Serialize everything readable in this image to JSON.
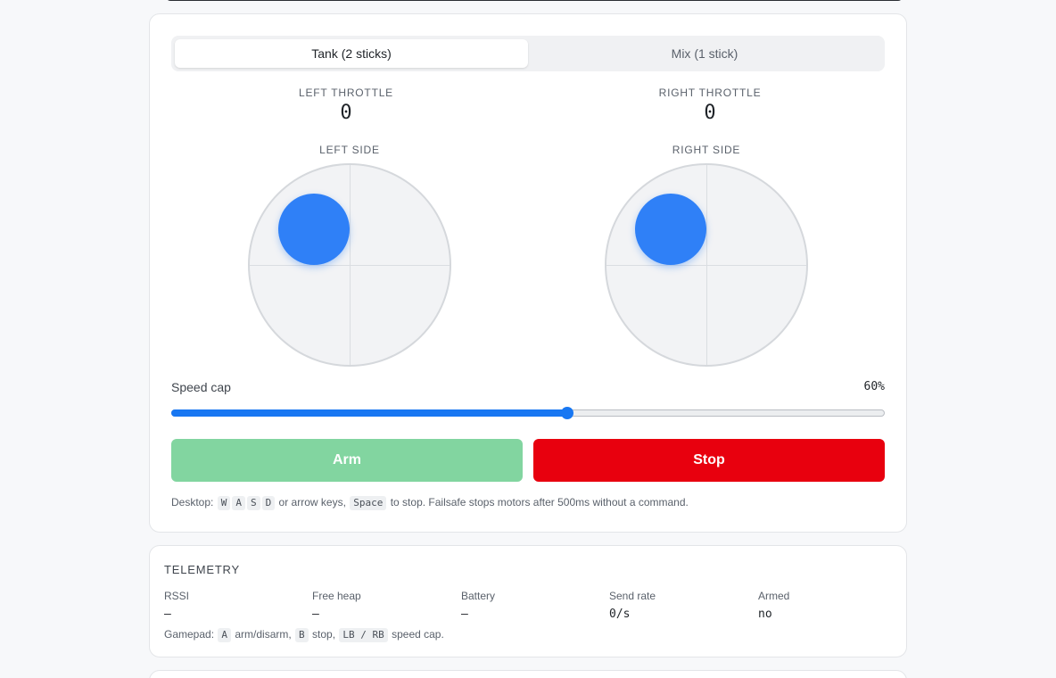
{
  "modes": {
    "tank": "Tank (2 sticks)",
    "mix": "Mix (1 stick)",
    "selected": "tank"
  },
  "throttle": {
    "left_label": "LEFT THROTTLE",
    "left_value": "0",
    "right_label": "RIGHT THROTTLE",
    "right_value": "0"
  },
  "sticks": {
    "left_label": "LEFT SIDE",
    "right_label": "RIGHT SIDE"
  },
  "speed_cap": {
    "label": "Speed cap",
    "value_text": "60%",
    "fraction": 0.555
  },
  "buttons": {
    "arm": "Arm",
    "stop": "Stop"
  },
  "hint": {
    "prefix": "Desktop:",
    "keys": [
      "W",
      "A",
      "S",
      "D"
    ],
    "middle": "or arrow keys,",
    "stop_key": "Space",
    "suffix": "to stop. Failsafe stops motors after 500ms without a command."
  },
  "telemetry": {
    "title": "TELEMETRY",
    "items": [
      {
        "label": "RSSI",
        "value": "—"
      },
      {
        "label": "Free heap",
        "value": "—"
      },
      {
        "label": "Battery",
        "value": "—"
      },
      {
        "label": "Send rate",
        "value": "0/s"
      },
      {
        "label": "Armed",
        "value": "no"
      }
    ],
    "gamepad": {
      "prefix": "Gamepad:",
      "key_a": "A",
      "text_a": "arm/disarm,",
      "key_b": "B",
      "text_b": "stop,",
      "key_lb": "LB",
      "sep": "/",
      "key_rb": "RB",
      "text_end": "speed cap."
    }
  },
  "colors": {
    "accent": "#1877f2",
    "knob": "#2f80f7",
    "arm_disabled": "#82d5a0",
    "stop": "#e8000e"
  }
}
